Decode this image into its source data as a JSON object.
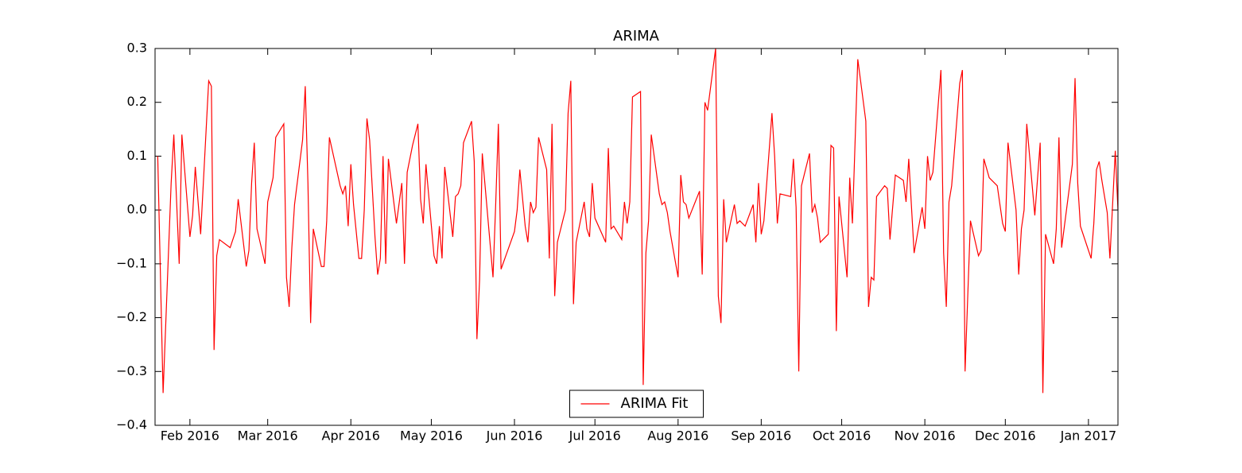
{
  "chart_data": {
    "type": "line",
    "title": "ARIMA",
    "legend": "lower center",
    "grid": false,
    "xlim": [
      "2016-01-19",
      "2017-01-12"
    ],
    "xticks": [
      {
        "value": "2016-02-01",
        "label": "Feb 2016"
      },
      {
        "value": "2016-03-01",
        "label": "Mar 2016"
      },
      {
        "value": "2016-04-01",
        "label": "Apr 2016"
      },
      {
        "value": "2016-05-01",
        "label": "May 2016"
      },
      {
        "value": "2016-06-01",
        "label": "Jun 2016"
      },
      {
        "value": "2016-07-01",
        "label": "Jul 2016"
      },
      {
        "value": "2016-08-01",
        "label": "Aug 2016"
      },
      {
        "value": "2016-09-01",
        "label": "Sep 2016"
      },
      {
        "value": "2016-10-01",
        "label": "Oct 2016"
      },
      {
        "value": "2016-11-01",
        "label": "Nov 2016"
      },
      {
        "value": "2016-12-01",
        "label": "Dec 2016"
      },
      {
        "value": "2017-01-01",
        "label": "Jan 2017"
      }
    ],
    "ylim": [
      -0.4,
      0.3
    ],
    "yticks": [
      {
        "value": -0.4,
        "label": "−0.4"
      },
      {
        "value": -0.3,
        "label": "−0.3"
      },
      {
        "value": -0.2,
        "label": "−0.2"
      },
      {
        "value": -0.1,
        "label": "−0.1"
      },
      {
        "value": 0,
        "label": "0.0"
      },
      {
        "value": 0.1,
        "label": "0.1"
      },
      {
        "value": 0.2,
        "label": "0.2"
      },
      {
        "value": 0.3,
        "label": "0.3"
      }
    ],
    "x": [
      "2016-01-20",
      "2016-01-22",
      "2016-01-25",
      "2016-01-26",
      "2016-01-28",
      "2016-01-29",
      "2016-02-01",
      "2016-02-02",
      "2016-02-03",
      "2016-02-05",
      "2016-02-08",
      "2016-02-09",
      "2016-02-10",
      "2016-02-11",
      "2016-02-12",
      "2016-02-16",
      "2016-02-18",
      "2016-02-19",
      "2016-02-22",
      "2016-02-23",
      "2016-02-24",
      "2016-02-25",
      "2016-02-26",
      "2016-02-29",
      "2016-03-01",
      "2016-03-03",
      "2016-03-04",
      "2016-03-07",
      "2016-03-08",
      "2016-03-09",
      "2016-03-10",
      "2016-03-11",
      "2016-03-14",
      "2016-03-15",
      "2016-03-16",
      "2016-03-17",
      "2016-03-18",
      "2016-03-21",
      "2016-03-22",
      "2016-03-23",
      "2016-03-24",
      "2016-03-28",
      "2016-03-29",
      "2016-03-30",
      "2016-03-31",
      "2016-04-01",
      "2016-04-02",
      "2016-04-04",
      "2016-04-05",
      "2016-04-06",
      "2016-04-07",
      "2016-04-08",
      "2016-04-10",
      "2016-04-11",
      "2016-04-12",
      "2016-04-13",
      "2016-04-14",
      "2016-04-15",
      "2016-04-18",
      "2016-04-20",
      "2016-04-21",
      "2016-04-22",
      "2016-04-24",
      "2016-04-26",
      "2016-04-27",
      "2016-04-28",
      "2016-04-29",
      "2016-05-02",
      "2016-05-03",
      "2016-05-04",
      "2016-05-05",
      "2016-05-06",
      "2016-05-09",
      "2016-05-10",
      "2016-05-11",
      "2016-05-12",
      "2016-05-13",
      "2016-05-16",
      "2016-05-17",
      "2016-05-18",
      "2016-05-19",
      "2016-05-20",
      "2016-05-24",
      "2016-05-25",
      "2016-05-26",
      "2016-05-27",
      "2016-06-01",
      "2016-06-02",
      "2016-06-03",
      "2016-06-05",
      "2016-06-06",
      "2016-06-07",
      "2016-06-08",
      "2016-06-09",
      "2016-06-10",
      "2016-06-13",
      "2016-06-14",
      "2016-06-15",
      "2016-06-16",
      "2016-06-17",
      "2016-06-20",
      "2016-06-21",
      "2016-06-22",
      "2016-06-23",
      "2016-06-24",
      "2016-06-27",
      "2016-06-28",
      "2016-06-29",
      "2016-06-30",
      "2016-07-01",
      "2016-07-05",
      "2016-07-06",
      "2016-07-07",
      "2016-07-08",
      "2016-07-11",
      "2016-07-12",
      "2016-07-13",
      "2016-07-14",
      "2016-07-15",
      "2016-07-18",
      "2016-07-19",
      "2016-07-20",
      "2016-07-21",
      "2016-07-22",
      "2016-07-25",
      "2016-07-26",
      "2016-07-27",
      "2016-07-28",
      "2016-07-29",
      "2016-08-01",
      "2016-08-02",
      "2016-08-03",
      "2016-08-04",
      "2016-08-05",
      "2016-08-09",
      "2016-08-10",
      "2016-08-11",
      "2016-08-12",
      "2016-08-15",
      "2016-08-16",
      "2016-08-17",
      "2016-08-18",
      "2016-08-19",
      "2016-08-22",
      "2016-08-23",
      "2016-08-24",
      "2016-08-26",
      "2016-08-29",
      "2016-08-30",
      "2016-08-31",
      "2016-09-01",
      "2016-09-02",
      "2016-09-05",
      "2016-09-06",
      "2016-09-07",
      "2016-09-08",
      "2016-09-12",
      "2016-09-13",
      "2016-09-14",
      "2016-09-15",
      "2016-09-16",
      "2016-09-19",
      "2016-09-20",
      "2016-09-21",
      "2016-09-22",
      "2016-09-23",
      "2016-09-26",
      "2016-09-27",
      "2016-09-28",
      "2016-09-29",
      "2016-09-30",
      "2016-10-03",
      "2016-10-04",
      "2016-10-05",
      "2016-10-07",
      "2016-10-10",
      "2016-10-11",
      "2016-10-12",
      "2016-10-13",
      "2016-10-14",
      "2016-10-17",
      "2016-10-18",
      "2016-10-19",
      "2016-10-21",
      "2016-10-24",
      "2016-10-25",
      "2016-10-26",
      "2016-10-28",
      "2016-10-31",
      "2016-11-01",
      "2016-11-02",
      "2016-11-03",
      "2016-11-04",
      "2016-11-07",
      "2016-11-08",
      "2016-11-09",
      "2016-11-10",
      "2016-11-11",
      "2016-11-14",
      "2016-11-15",
      "2016-11-16",
      "2016-11-18",
      "2016-11-21",
      "2016-11-22",
      "2016-11-23",
      "2016-11-25",
      "2016-11-28",
      "2016-11-30",
      "2016-12-01",
      "2016-12-02",
      "2016-12-05",
      "2016-12-06",
      "2016-12-07",
      "2016-12-08",
      "2016-12-09",
      "2016-12-12",
      "2016-12-14",
      "2016-12-15",
      "2016-12-16",
      "2016-12-19",
      "2016-12-20",
      "2016-12-21",
      "2016-12-22",
      "2016-12-26",
      "2016-12-27",
      "2016-12-28",
      "2016-12-29",
      "2017-01-02",
      "2017-01-03",
      "2017-01-04",
      "2017-01-05",
      "2017-01-06",
      "2017-01-08",
      "2017-01-09",
      "2017-01-11",
      "2017-01-12"
    ],
    "series": [
      {
        "name": "ARIMA Fit",
        "color": "#ff0000",
        "values": [
          0.1,
          -0.34,
          0.05,
          0.14,
          -0.1,
          0.14,
          -0.05,
          -0.01,
          0.08,
          -0.045,
          0.24,
          0.23,
          -0.26,
          -0.085,
          -0.055,
          -0.07,
          -0.04,
          0.02,
          -0.105,
          -0.075,
          0.05,
          0.125,
          -0.035,
          -0.1,
          0.015,
          0.06,
          0.135,
          0.16,
          -0.125,
          -0.18,
          -0.07,
          0.01,
          0.13,
          0.23,
          0.05,
          -0.21,
          -0.035,
          -0.105,
          -0.105,
          -0.02,
          0.135,
          0.045,
          0.03,
          0.045,
          -0.03,
          0.085,
          0.01,
          -0.09,
          -0.09,
          0.0,
          0.17,
          0.13,
          -0.05,
          -0.12,
          -0.09,
          0.1,
          -0.1,
          0.095,
          -0.025,
          0.05,
          -0.1,
          0.07,
          0.12,
          0.16,
          0.02,
          -0.025,
          0.085,
          -0.085,
          -0.1,
          -0.03,
          -0.09,
          0.08,
          -0.05,
          0.025,
          0.03,
          0.045,
          0.125,
          0.165,
          0.09,
          -0.24,
          -0.13,
          0.105,
          -0.125,
          0.01,
          0.16,
          -0.11,
          -0.04,
          0.0,
          0.075,
          -0.03,
          -0.06,
          0.015,
          -0.005,
          0.005,
          0.135,
          0.075,
          -0.09,
          0.16,
          -0.16,
          -0.06,
          0.0,
          0.18,
          0.24,
          -0.175,
          -0.06,
          0.015,
          -0.035,
          -0.05,
          0.05,
          -0.015,
          -0.06,
          0.115,
          -0.035,
          -0.03,
          -0.055,
          0.015,
          -0.025,
          0.015,
          0.21,
          0.22,
          -0.325,
          -0.08,
          -0.02,
          0.14,
          0.03,
          0.01,
          0.015,
          -0.005,
          -0.04,
          -0.125,
          0.065,
          0.015,
          0.01,
          -0.015,
          0.035,
          -0.12,
          0.2,
          0.185,
          0.3,
          -0.16,
          -0.21,
          0.02,
          -0.06,
          0.01,
          -0.025,
          -0.02,
          -0.03,
          0.01,
          -0.06,
          0.05,
          -0.045,
          -0.02,
          0.18,
          0.1,
          -0.025,
          0.03,
          0.025,
          0.095,
          0.005,
          -0.3,
          0.045,
          0.105,
          -0.005,
          0.01,
          -0.015,
          -0.06,
          -0.045,
          0.12,
          0.115,
          -0.225,
          0.025,
          -0.125,
          0.06,
          -0.025,
          0.28,
          0.165,
          -0.18,
          -0.125,
          -0.13,
          0.025,
          0.045,
          0.04,
          -0.055,
          0.065,
          0.055,
          0.015,
          0.095,
          -0.08,
          0.005,
          -0.035,
          0.1,
          0.055,
          0.07,
          0.26,
          -0.08,
          -0.18,
          0.015,
          0.045,
          0.235,
          0.26,
          -0.3,
          -0.02,
          -0.085,
          -0.075,
          0.095,
          0.06,
          0.045,
          -0.025,
          -0.04,
          0.125,
          0.0,
          -0.12,
          -0.035,
          0.0,
          0.16,
          -0.01,
          0.125,
          -0.34,
          -0.045,
          -0.1,
          -0.035,
          0.135,
          -0.07,
          0.085,
          0.245,
          0.05,
          -0.03,
          -0.09,
          -0.025,
          0.075,
          0.09,
          0.055,
          -0.005,
          -0.09,
          0.11,
          0.0
        ]
      }
    ]
  }
}
